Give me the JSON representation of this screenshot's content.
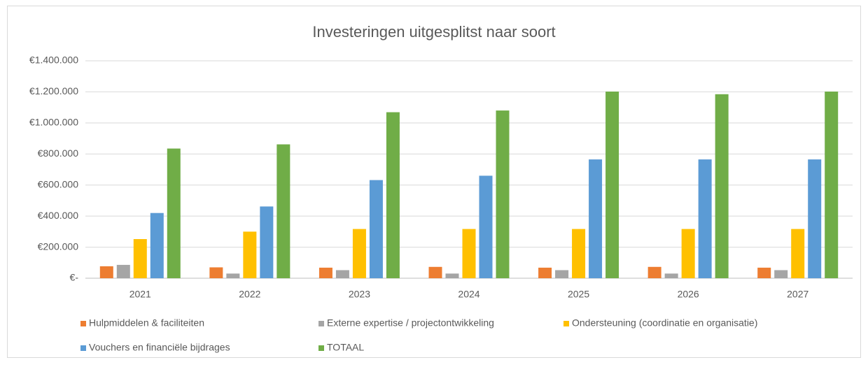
{
  "chart_data": {
    "type": "bar",
    "title": "Investeringen uitgesplitst naar soort",
    "categories": [
      "2021",
      "2022",
      "2023",
      "2024",
      "2025",
      "2026",
      "2027"
    ],
    "series": [
      {
        "name": "Hulpmiddelen & faciliteiten",
        "color": "#ed7d31",
        "values": [
          77000,
          70000,
          68000,
          73000,
          68000,
          73000,
          68000
        ]
      },
      {
        "name": "Externe expertise / projectontwikkeling",
        "color": "#a5a5a5",
        "values": [
          86000,
          30000,
          52000,
          30000,
          52000,
          30000,
          52000
        ]
      },
      {
        "name": "Ondersteuning (coordinatie en organisatie)",
        "color": "#ffc000",
        "values": [
          252000,
          300000,
          317000,
          317000,
          317000,
          317000,
          317000
        ]
      },
      {
        "name": "Vouchers en financiële bijdrages",
        "color": "#5b9bd5",
        "values": [
          420000,
          462000,
          632000,
          660000,
          765000,
          765000,
          765000
        ]
      },
      {
        "name": "TOTAAL",
        "color": "#70ad47",
        "values": [
          835000,
          862000,
          1069000,
          1080000,
          1202000,
          1185000,
          1202000
        ]
      }
    ],
    "ylim": [
      0,
      1400000
    ],
    "yticks": [
      {
        "value": 0,
        "label": "€-"
      },
      {
        "value": 200000,
        "label": "€200.000"
      },
      {
        "value": 400000,
        "label": "€400.000"
      },
      {
        "value": 600000,
        "label": "€600.000"
      },
      {
        "value": 800000,
        "label": "€800.000"
      },
      {
        "value": 1000000,
        "label": "€1.000.000"
      },
      {
        "value": 1200000,
        "label": "€1.200.000"
      },
      {
        "value": 1400000,
        "label": "€1.400.000"
      }
    ],
    "grid": true,
    "legend": "bottom"
  }
}
